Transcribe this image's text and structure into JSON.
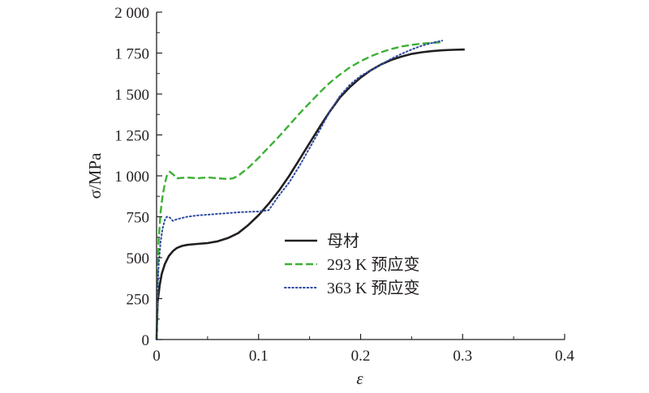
{
  "chart_data": {
    "type": "line",
    "title": "",
    "xlabel": "ε",
    "ylabel": "σ/MPa",
    "xlim": [
      0,
      0.4
    ],
    "ylim": [
      0,
      2000
    ],
    "x_ticks": [
      0,
      0.1,
      0.2,
      0.3,
      0.4
    ],
    "x_tick_labels": [
      "0",
      "0.1",
      "0.2",
      "0.3",
      "0.4"
    ],
    "y_ticks": [
      0,
      250,
      500,
      750,
      1000,
      1250,
      1500,
      1750,
      2000
    ],
    "y_tick_labels": [
      "0",
      "250",
      "500",
      "750",
      "1 000",
      "1 250",
      "1 500",
      "1 750",
      "2 000"
    ],
    "grid": false,
    "legend_position": "center-right",
    "series": [
      {
        "name": "母材",
        "color": "#231f20",
        "style": "solid",
        "points": [
          [
            0,
            0
          ],
          [
            0.001,
            230
          ],
          [
            0.003,
            330
          ],
          [
            0.005,
            400
          ],
          [
            0.008,
            460
          ],
          [
            0.012,
            510
          ],
          [
            0.016,
            540
          ],
          [
            0.02,
            560
          ],
          [
            0.025,
            572
          ],
          [
            0.03,
            578
          ],
          [
            0.04,
            584
          ],
          [
            0.05,
            589
          ],
          [
            0.06,
            600
          ],
          [
            0.07,
            620
          ],
          [
            0.08,
            650
          ],
          [
            0.09,
            700
          ],
          [
            0.1,
            760
          ],
          [
            0.11,
            830
          ],
          [
            0.12,
            910
          ],
          [
            0.13,
            1000
          ],
          [
            0.14,
            1100
          ],
          [
            0.15,
            1200
          ],
          [
            0.16,
            1300
          ],
          [
            0.17,
            1395
          ],
          [
            0.18,
            1480
          ],
          [
            0.19,
            1545
          ],
          [
            0.2,
            1600
          ],
          [
            0.21,
            1645
          ],
          [
            0.22,
            1680
          ],
          [
            0.23,
            1708
          ],
          [
            0.24,
            1728
          ],
          [
            0.25,
            1745
          ],
          [
            0.26,
            1755
          ],
          [
            0.27,
            1762
          ],
          [
            0.28,
            1767
          ],
          [
            0.29,
            1770
          ],
          [
            0.302,
            1772
          ]
        ]
      },
      {
        "name": "293 K 预应变",
        "color": "#3cb034",
        "style": "dashed",
        "points": [
          [
            0,
            0
          ],
          [
            0.001,
            400
          ],
          [
            0.002,
            600
          ],
          [
            0.004,
            780
          ],
          [
            0.006,
            880
          ],
          [
            0.008,
            950
          ],
          [
            0.01,
            1000
          ],
          [
            0.013,
            1025
          ],
          [
            0.016,
            1010
          ],
          [
            0.02,
            985
          ],
          [
            0.03,
            990
          ],
          [
            0.04,
            985
          ],
          [
            0.05,
            990
          ],
          [
            0.06,
            985
          ],
          [
            0.07,
            980
          ],
          [
            0.075,
            985
          ],
          [
            0.08,
            1000
          ],
          [
            0.09,
            1050
          ],
          [
            0.1,
            1110
          ],
          [
            0.11,
            1175
          ],
          [
            0.12,
            1240
          ],
          [
            0.13,
            1310
          ],
          [
            0.14,
            1380
          ],
          [
            0.15,
            1445
          ],
          [
            0.16,
            1510
          ],
          [
            0.17,
            1570
          ],
          [
            0.18,
            1620
          ],
          [
            0.19,
            1665
          ],
          [
            0.2,
            1700
          ],
          [
            0.21,
            1730
          ],
          [
            0.22,
            1755
          ],
          [
            0.23,
            1775
          ],
          [
            0.24,
            1790
          ],
          [
            0.25,
            1800
          ],
          [
            0.26,
            1808
          ],
          [
            0.27,
            1813
          ],
          [
            0.28,
            1816
          ]
        ]
      },
      {
        "name": "363 K 预应变",
        "color": "#2e4a9e",
        "style": "dotted",
        "points": [
          [
            0,
            0
          ],
          [
            0.001,
            300
          ],
          [
            0.002,
            450
          ],
          [
            0.004,
            600
          ],
          [
            0.006,
            680
          ],
          [
            0.008,
            730
          ],
          [
            0.01,
            750
          ],
          [
            0.013,
            745
          ],
          [
            0.016,
            725
          ],
          [
            0.02,
            735
          ],
          [
            0.03,
            750
          ],
          [
            0.04,
            758
          ],
          [
            0.05,
            763
          ],
          [
            0.06,
            768
          ],
          [
            0.07,
            772
          ],
          [
            0.08,
            777
          ],
          [
            0.09,
            780
          ],
          [
            0.1,
            782
          ],
          [
            0.11,
            790
          ],
          [
            0.12,
            880
          ],
          [
            0.13,
            960
          ],
          [
            0.14,
            1060
          ],
          [
            0.15,
            1170
          ],
          [
            0.16,
            1280
          ],
          [
            0.17,
            1395
          ],
          [
            0.18,
            1490
          ],
          [
            0.19,
            1560
          ],
          [
            0.2,
            1610
          ],
          [
            0.21,
            1645
          ],
          [
            0.22,
            1680
          ],
          [
            0.23,
            1715
          ],
          [
            0.24,
            1745
          ],
          [
            0.25,
            1772
          ],
          [
            0.26,
            1795
          ],
          [
            0.27,
            1812
          ],
          [
            0.28,
            1826
          ]
        ]
      }
    ]
  }
}
